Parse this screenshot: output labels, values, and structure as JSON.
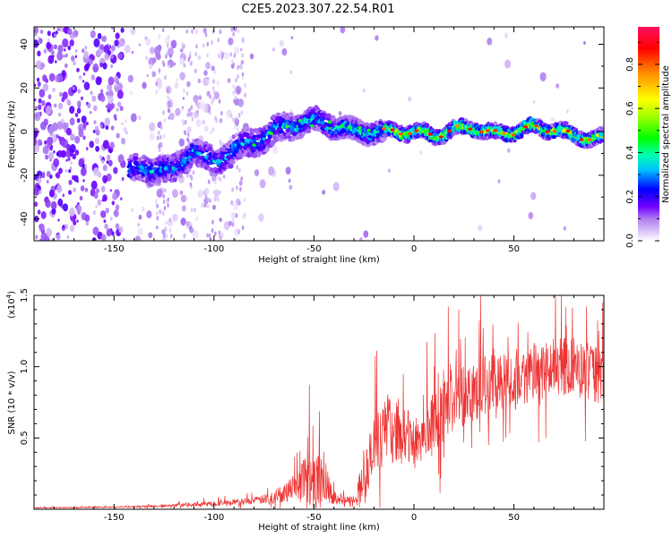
{
  "title": "C2E5.2023.307.22.54.R01",
  "chart_data": [
    {
      "type": "heatmap",
      "name": "spectrogram",
      "xlabel": "Height of straight line (km)",
      "ylabel": "Frequency (Hz)",
      "xlim": [
        -190,
        95
      ],
      "ylim": [
        -50,
        48
      ],
      "xticks": [
        -150,
        -100,
        -50,
        0,
        50
      ],
      "xtick_labels": [
        "-150",
        "-100",
        "-50",
        "0",
        "50"
      ],
      "yticks": [
        -40,
        -20,
        0,
        20,
        40
      ],
      "ytick_labels": [
        "-40",
        "-20",
        "0",
        "20",
        "40"
      ],
      "colorbar": {
        "label": "Normalized spectral amplitude",
        "range": [
          0,
          0.97
        ],
        "ticks": [
          0.0,
          0.2,
          0.4,
          0.6,
          0.8
        ],
        "tick_labels": [
          "0.0",
          "0.2",
          "0.4",
          "0.6",
          "0.8"
        ],
        "colors": [
          "#ffffff",
          "#dcc8f8",
          "#9a4cf0",
          "#6a00ff",
          "#0000ff",
          "#00d8ff",
          "#00ff70",
          "#50ff00",
          "#ffff00",
          "#ff8000",
          "#ff0000",
          "#ff1060"
        ]
      },
      "ridge": {
        "x": [
          -140,
          -130,
          -120,
          -110,
          -100,
          -90,
          -80,
          -70,
          -60,
          -50,
          -40,
          -30,
          -20,
          -10,
          0,
          10,
          20,
          30,
          40,
          50,
          60,
          70,
          80,
          90
        ],
        "freq": [
          -18,
          -17,
          -18,
          -8,
          -15,
          -8,
          -5,
          0,
          3,
          5,
          3,
          0,
          0,
          0,
          0,
          -2,
          1,
          2,
          -1,
          0,
          2,
          1,
          -2,
          -3
        ]
      }
    },
    {
      "type": "line",
      "name": "snr",
      "xlabel": "Height of straight line (km)",
      "ylabel": "SNR (10 * v/v)",
      "scale_label": "(x10",
      "scale_exp": "4",
      "scale_close": ")",
      "color": "#ee3333",
      "xlim": [
        -190,
        95
      ],
      "ylim": [
        0,
        1.5
      ],
      "xticks": [
        -150,
        -100,
        -50,
        0,
        50
      ],
      "xtick_labels": [
        "-150",
        "-100",
        "-50",
        "0",
        "50"
      ],
      "yticks": [
        0.5,
        1.0,
        1.5
      ],
      "ytick_labels": [
        "0.5",
        "1.0",
        "1.5"
      ],
      "envelope": {
        "x": [
          -190,
          -150,
          -120,
          -100,
          -80,
          -70,
          -60,
          -55,
          -50,
          -45,
          -40,
          -35,
          -30,
          -25,
          -20,
          -15,
          -10,
          0,
          10,
          20,
          30,
          40,
          50,
          60,
          70,
          80,
          90,
          95
        ],
        "base": [
          0.01,
          0.015,
          0.025,
          0.04,
          0.06,
          0.08,
          0.16,
          0.22,
          0.25,
          0.2,
          0.1,
          0.05,
          0.06,
          0.2,
          0.4,
          0.55,
          0.55,
          0.48,
          0.6,
          0.78,
          0.85,
          0.88,
          0.92,
          0.95,
          1.0,
          1.0,
          0.95,
          0.92
        ],
        "spike": [
          0.005,
          0.01,
          0.02,
          0.04,
          0.05,
          0.1,
          0.2,
          0.4,
          0.6,
          0.35,
          0.15,
          0.08,
          0.1,
          0.4,
          0.6,
          0.5,
          0.5,
          0.4,
          0.5,
          0.55,
          0.5,
          0.45,
          0.45,
          0.45,
          0.45,
          0.45,
          0.45,
          0.4
        ]
      }
    }
  ]
}
